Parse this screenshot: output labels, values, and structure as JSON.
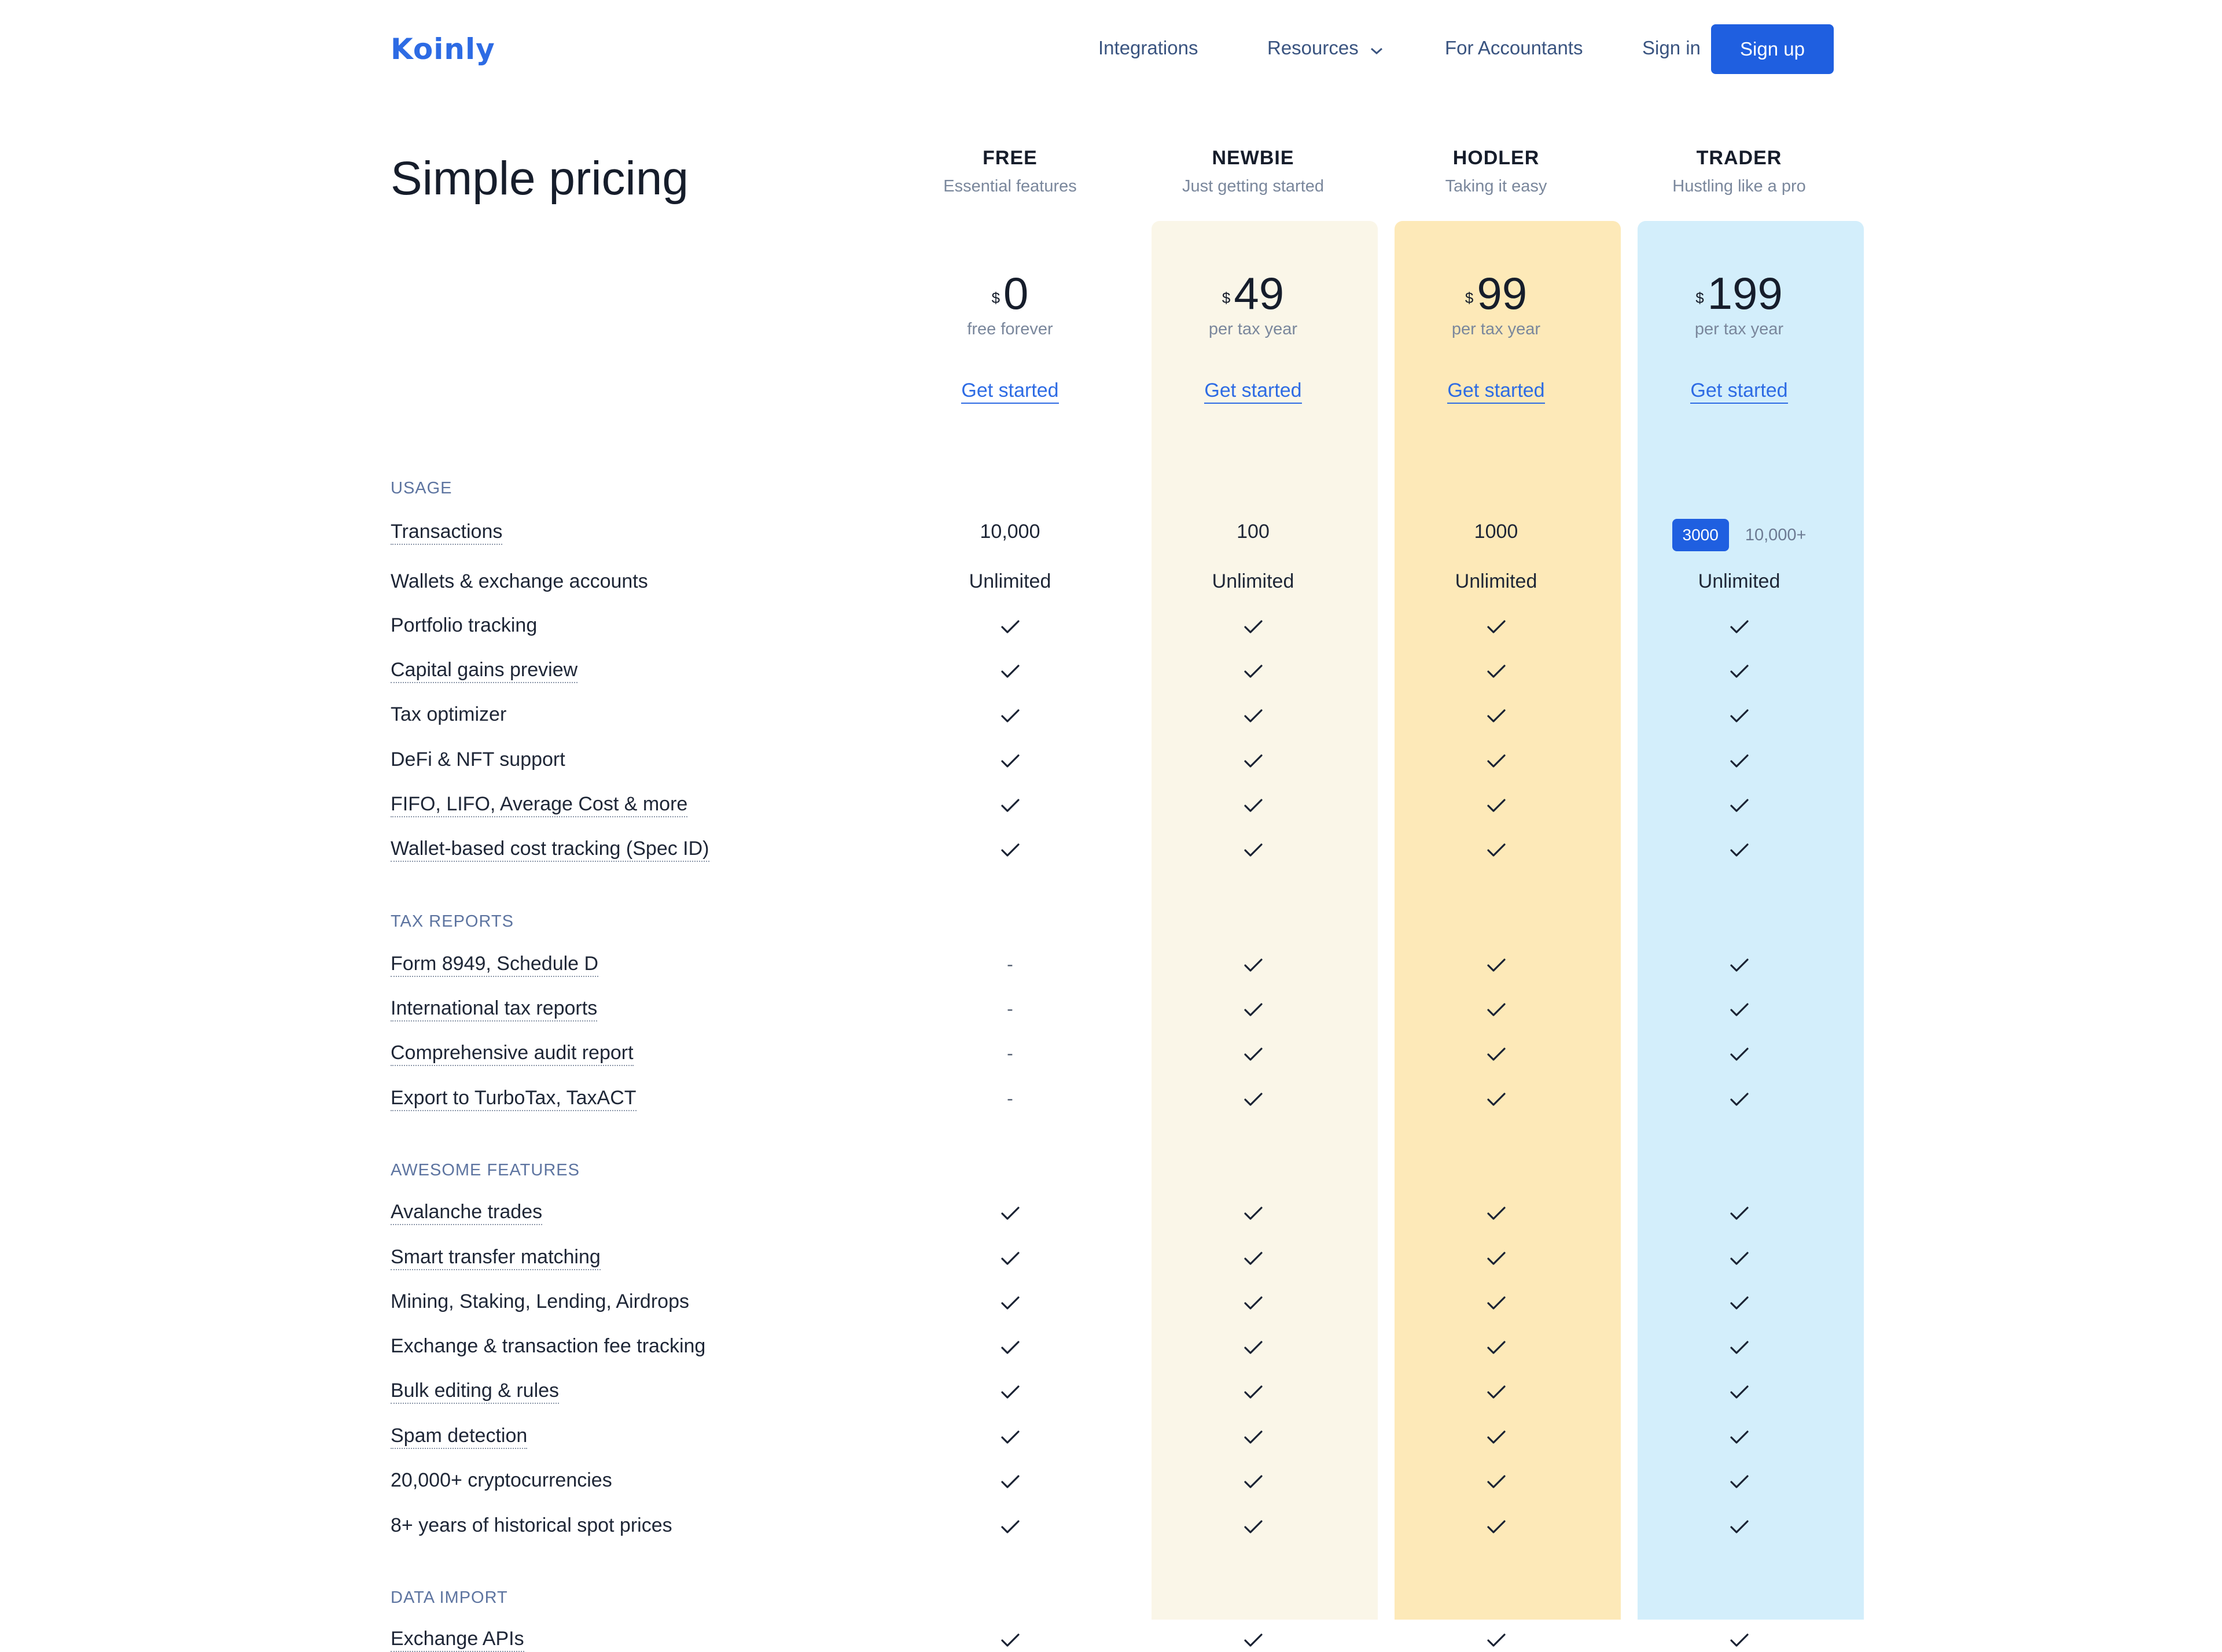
{
  "nav": {
    "logo": "Koinly",
    "links": [
      "Integrations",
      "Resources",
      "For Accountants",
      "Sign in"
    ],
    "signup": "Sign up"
  },
  "title": "Simple pricing",
  "colors": {
    "newbie_bg": "#faf6e8",
    "hodler_bg": "#fde9b8",
    "trader_bg": "#d3eefb",
    "accent": "#1f5fe0"
  },
  "plans": [
    {
      "name": "FREE",
      "sub": "Essential features",
      "currency": "$",
      "price": "0",
      "note": "free forever",
      "cta": "Get started"
    },
    {
      "name": "NEWBIE",
      "sub": "Just getting started",
      "currency": "$",
      "price": "49",
      "note": "per tax year",
      "cta": "Get started"
    },
    {
      "name": "HODLER",
      "sub": "Taking it easy",
      "currency": "$",
      "price": "99",
      "note": "per tax year",
      "cta": "Get started"
    },
    {
      "name": "TRADER",
      "sub": "Hustling like a pro",
      "currency": "$",
      "price": "199",
      "note": "per tax year",
      "cta": "Get started"
    }
  ],
  "sections": {
    "usage": "USAGE",
    "tax_reports": "TAX REPORTS",
    "awesome": "AWESOME FEATURES",
    "data_import": "DATA IMPORT"
  },
  "usage": {
    "transactions": {
      "label": "Transactions",
      "values": [
        "10,000",
        "100",
        "1000"
      ],
      "trader_selected": "3000",
      "trader_other": "10,000+"
    },
    "wallets": {
      "label": "Wallets & exchange accounts",
      "values": [
        "Unlimited",
        "Unlimited",
        "Unlimited",
        "Unlimited"
      ]
    },
    "portfolio": "Portfolio tracking",
    "capital_gains": "Capital gains preview",
    "tax_optimizer": "Tax optimizer",
    "defi": "DeFi & NFT support",
    "fifo": "FIFO, LIFO, Average Cost & more",
    "wallet_cost": "Wallet-based cost tracking (Spec ID)"
  },
  "tax_reports": {
    "form8949": "Form 8949, Schedule D",
    "international": "International tax reports",
    "audit": "Comprehensive audit report",
    "turbotax": "Export to TurboTax, TaxACT",
    "free_value": "-"
  },
  "awesome": {
    "avalanche": "Avalanche trades",
    "smart_transfer": "Smart transfer matching",
    "mining": "Mining, Staking, Lending, Airdrops",
    "fee_tracking": "Exchange & transaction fee tracking",
    "bulk": "Bulk editing & rules",
    "spam": "Spam detection",
    "crypto": "20,000+ cryptocurrencies",
    "spot": "8+ years of historical spot prices"
  },
  "data_import": {
    "exchange_api": "Exchange APIs"
  }
}
